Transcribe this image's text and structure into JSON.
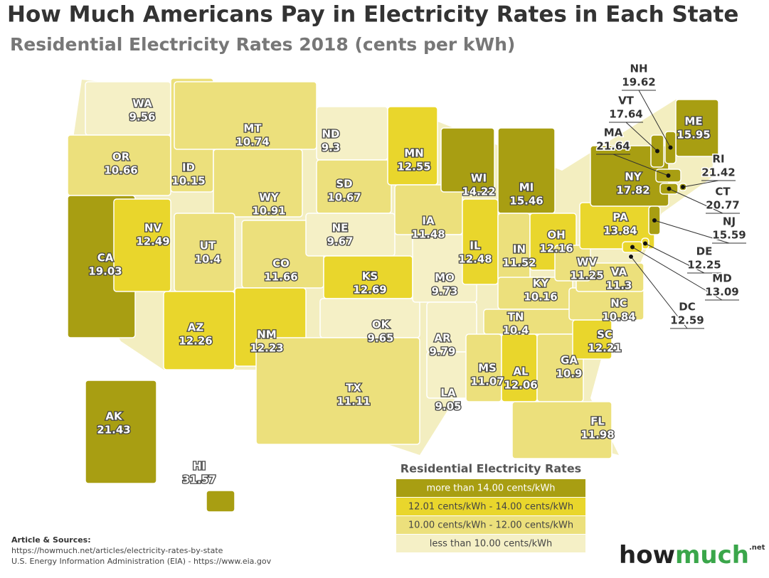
{
  "header": {
    "title": "How Much Americans Pay in Electricity Rates in Each State",
    "subtitle": "Residential Electricity Rates 2018 (cents per kWh)"
  },
  "map": {
    "states": [
      {
        "abbr": "WA",
        "value": 9.56,
        "color": "#f5f0c6"
      },
      {
        "abbr": "OR",
        "value": 10.66,
        "color": "#ece07c"
      },
      {
        "abbr": "CA",
        "value": 19.03,
        "color": "#a89e12"
      },
      {
        "abbr": "NV",
        "value": 12.49,
        "color": "#e9d62c"
      },
      {
        "abbr": "ID",
        "value": 10.15,
        "color": "#ece07c"
      },
      {
        "abbr": "MT",
        "value": 10.74,
        "color": "#ece07c"
      },
      {
        "abbr": "WY",
        "value": 10.91,
        "color": "#ece07c"
      },
      {
        "abbr": "UT",
        "value": 10.4,
        "color": "#ece07c"
      },
      {
        "abbr": "CO",
        "value": 11.66,
        "color": "#ece07c"
      },
      {
        "abbr": "AZ",
        "value": 12.26,
        "color": "#e9d62c"
      },
      {
        "abbr": "NM",
        "value": 12.23,
        "color": "#e9d62c"
      },
      {
        "abbr": "ND",
        "value": 9.3,
        "color": "#f5f0c6"
      },
      {
        "abbr": "SD",
        "value": 10.67,
        "color": "#ece07c"
      },
      {
        "abbr": "NE",
        "value": 9.67,
        "color": "#f5f0c6"
      },
      {
        "abbr": "KS",
        "value": 12.69,
        "color": "#e9d62c"
      },
      {
        "abbr": "OK",
        "value": 9.65,
        "color": "#f5f0c6"
      },
      {
        "abbr": "TX",
        "value": 11.11,
        "color": "#ece07c"
      },
      {
        "abbr": "MN",
        "value": 12.55,
        "color": "#e9d62c"
      },
      {
        "abbr": "IA",
        "value": 11.48,
        "color": "#ece07c"
      },
      {
        "abbr": "MO",
        "value": 9.73,
        "color": "#f5f0c6"
      },
      {
        "abbr": "AR",
        "value": 9.79,
        "color": "#f5f0c6"
      },
      {
        "abbr": "LA",
        "value": 9.05,
        "color": "#f5f0c6"
      },
      {
        "abbr": "WI",
        "value": 14.22,
        "color": "#a89e12"
      },
      {
        "abbr": "MI",
        "value": 15.46,
        "color": "#a89e12"
      },
      {
        "abbr": "IL",
        "value": 12.48,
        "color": "#e9d62c"
      },
      {
        "abbr": "IN",
        "value": 11.52,
        "color": "#ece07c"
      },
      {
        "abbr": "OH",
        "value": 12.16,
        "color": "#e9d62c"
      },
      {
        "abbr": "KY",
        "value": 10.16,
        "color": "#ece07c"
      },
      {
        "abbr": "TN",
        "value": 10.4,
        "color": "#ece07c"
      },
      {
        "abbr": "MS",
        "value": 11.07,
        "color": "#ece07c"
      },
      {
        "abbr": "AL",
        "value": 12.06,
        "color": "#e9d62c"
      },
      {
        "abbr": "GA",
        "value": 10.9,
        "color": "#ece07c"
      },
      {
        "abbr": "FL",
        "value": 11.98,
        "color": "#ece07c"
      },
      {
        "abbr": "SC",
        "value": 12.21,
        "color": "#e9d62c"
      },
      {
        "abbr": "NC",
        "value": 10.84,
        "color": "#ece07c"
      },
      {
        "abbr": "VA",
        "value": 11.3,
        "color": "#ece07c"
      },
      {
        "abbr": "WV",
        "value": 11.25,
        "color": "#ece07c"
      },
      {
        "abbr": "PA",
        "value": 13.84,
        "color": "#e9d62c"
      },
      {
        "abbr": "NY",
        "value": 17.82,
        "color": "#a89e12"
      },
      {
        "abbr": "ME",
        "value": 15.95,
        "color": "#a89e12"
      },
      {
        "abbr": "NH",
        "value": 19.62,
        "color": "#a89e12"
      },
      {
        "abbr": "VT",
        "value": 17.64,
        "color": "#a89e12"
      },
      {
        "abbr": "MA",
        "value": 21.64,
        "color": "#a89e12"
      },
      {
        "abbr": "RI",
        "value": 21.42,
        "color": "#a89e12"
      },
      {
        "abbr": "CT",
        "value": 20.77,
        "color": "#a89e12"
      },
      {
        "abbr": "NJ",
        "value": 15.59,
        "color": "#a89e12"
      },
      {
        "abbr": "DE",
        "value": 12.25,
        "color": "#e9d62c"
      },
      {
        "abbr": "MD",
        "value": 13.09,
        "color": "#e9d62c"
      },
      {
        "abbr": "DC",
        "value": 12.59,
        "color": "#e9d62c"
      },
      {
        "abbr": "AK",
        "value": 21.43,
        "color": "#a89e12"
      },
      {
        "abbr": "HI",
        "value": 31.57,
        "color": "#a89e12"
      }
    ]
  },
  "legend": {
    "title": "Residential Electricity Rates",
    "items": [
      {
        "label": "more than 14.00 cents/kWh",
        "color": "#a89e12"
      },
      {
        "label": "12.01 cents/kWh - 14.00 cents/kWh",
        "color": "#e9d62c"
      },
      {
        "label": "10.00 cents/kWh - 12.00 cents/kWh",
        "color": "#ece07c"
      },
      {
        "label": "less than 10.00 cents/kWh",
        "color": "#f5f0c6"
      }
    ]
  },
  "sources": {
    "heading": "Article & Sources:",
    "lines": [
      "https://howmuch.net/articles/electricity-rates-by-state",
      "U.S. Energy Information Administration (EIA) - https://www.eia.gov"
    ]
  },
  "logo": {
    "main": "how",
    "accent": "much",
    "suffix": ".net"
  }
}
